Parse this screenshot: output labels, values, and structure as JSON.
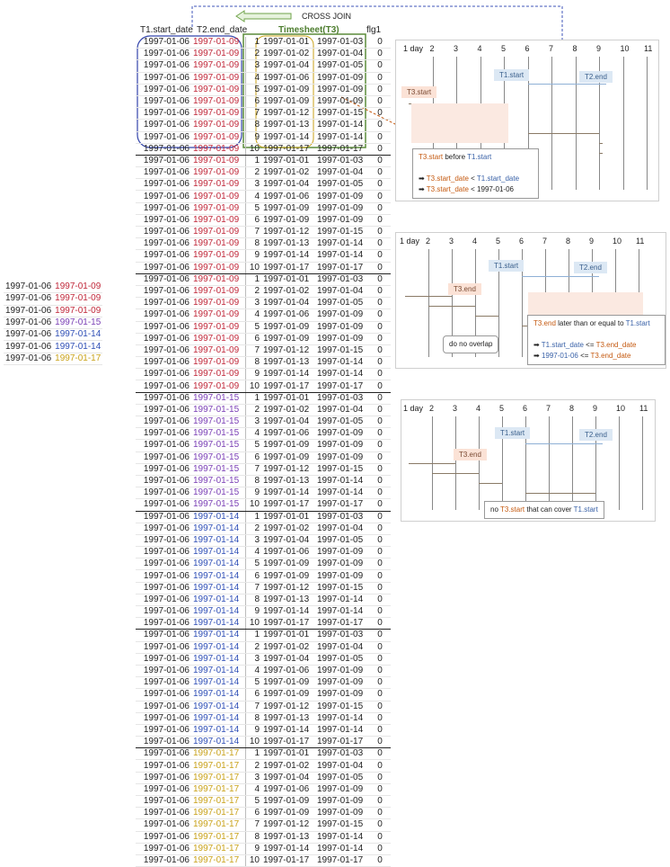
{
  "colors": {
    "red": "#c0283a",
    "purple": "#7a3fb5",
    "blue": "#2f4fb6",
    "gold": "#c9a21a",
    "green": "#4d7d2e",
    "orange": "#c55a11",
    "steelblue": "#3a62a8"
  },
  "header": {
    "cross_join": "CROSS JOIN",
    "col_start": "T1.start_date",
    "col_end": "T2.end_date",
    "timesheet": "Timesheet(T3)",
    "col_flg": "flg1"
  },
  "left_rows": [
    {
      "start": "1997-01-06",
      "end": "1997-01-09",
      "color": "red"
    },
    {
      "start": "1997-01-06",
      "end": "1997-01-09",
      "color": "red"
    },
    {
      "start": "1997-01-06",
      "end": "1997-01-09",
      "color": "red"
    },
    {
      "start": "1997-01-06",
      "end": "1997-01-15",
      "color": "purple"
    },
    {
      "start": "1997-01-06",
      "end": "1997-01-14",
      "color": "blue"
    },
    {
      "start": "1997-01-06",
      "end": "1997-01-14",
      "color": "blue"
    },
    {
      "start": "1997-01-06",
      "end": "1997-01-17",
      "color": "gold"
    }
  ],
  "t1_start": "1997-01-06",
  "groups": [
    {
      "end": "1997-01-09",
      "color": "red"
    },
    {
      "end": "1997-01-09",
      "color": "red"
    },
    {
      "end": "1997-01-09",
      "color": "red"
    },
    {
      "end": "1997-01-15",
      "color": "purple"
    },
    {
      "end": "1997-01-14",
      "color": "blue"
    },
    {
      "end": "1997-01-14",
      "color": "blue"
    },
    {
      "end": "1997-01-17",
      "color": "gold"
    }
  ],
  "timesheet": [
    {
      "n": "1",
      "s": "1997-01-01",
      "e": "1997-01-03",
      "f": "0"
    },
    {
      "n": "2",
      "s": "1997-01-02",
      "e": "1997-01-04",
      "f": "0"
    },
    {
      "n": "3",
      "s": "1997-01-04",
      "e": "1997-01-05",
      "f": "0"
    },
    {
      "n": "4",
      "s": "1997-01-06",
      "e": "1997-01-09",
      "f": "0"
    },
    {
      "n": "5",
      "s": "1997-01-09",
      "e": "1997-01-09",
      "f": "0"
    },
    {
      "n": "6",
      "s": "1997-01-09",
      "e": "1997-01-09",
      "f": "0"
    },
    {
      "n": "7",
      "s": "1997-01-12",
      "e": "1997-01-15",
      "f": "0"
    },
    {
      "n": "8",
      "s": "1997-01-13",
      "e": "1997-01-14",
      "f": "0"
    },
    {
      "n": "9",
      "s": "1997-01-14",
      "e": "1997-01-14",
      "f": "0"
    },
    {
      "n": "10",
      "s": "1997-01-17",
      "e": "1997-01-17",
      "f": "0"
    }
  ],
  "timeline_ticks": [
    "1 day",
    "2",
    "3",
    "4",
    "5",
    "6",
    "7",
    "8",
    "9",
    "10",
    "11"
  ],
  "panel1": {
    "t1_start": "T1.start",
    "t2_end": "T2.end",
    "t3_label": "T3.start",
    "note_line1_a": "T3.start",
    "note_line1_b": " before ",
    "note_line1_c": "T1.start",
    "note_line2_a": "T3.start_date",
    "note_line2_b": " < ",
    "note_line2_c": "T1.start_date",
    "note_line3_a": "T3.start_date",
    "note_line3_b": " < 1997-01-06"
  },
  "panel2": {
    "t1_start": "T1.start",
    "t2_end": "T2.end",
    "t3_label": "T3.end",
    "overlap": "do no overlap",
    "note_line1_a": "T3.end",
    "note_line1_b": "  later than or equal to ",
    "note_line1_c": "T1.start",
    "note_line2_a": "T1.start_date",
    "note_line2_b": " <= ",
    "note_line2_c": "T3.end_date",
    "note_line3_a": "1997-01-06",
    "note_line3_b": " <= ",
    "note_line3_c": "T3.end_date"
  },
  "panel3": {
    "t1_start": "T1.start",
    "t2_end": "T2.end",
    "t3_label": "T3.end",
    "note_a": "no ",
    "note_b": "T3.start",
    "note_c": " that can cover ",
    "note_d": "T1.start"
  }
}
